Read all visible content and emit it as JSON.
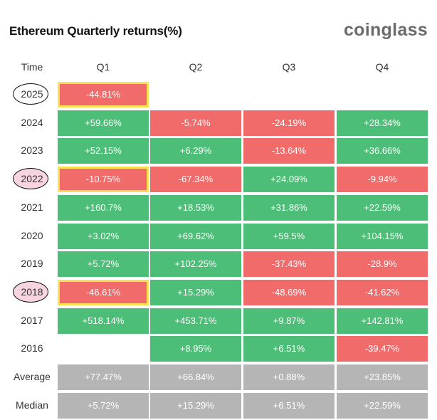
{
  "chart_data": {
    "type": "table",
    "title": "Ethereum Quarterly returns(%)",
    "brand": "coinglass",
    "columns": [
      "Time",
      "Q1",
      "Q2",
      "Q3",
      "Q4"
    ],
    "rows": [
      {
        "label": "2025",
        "values": [
          "-44.81%",
          null,
          null,
          null
        ]
      },
      {
        "label": "2024",
        "values": [
          "+59.66%",
          "-5.74%",
          "-24.19%",
          "+28.34%"
        ]
      },
      {
        "label": "2023",
        "values": [
          "+52.15%",
          "+6.29%",
          "-13.64%",
          "+36.66%"
        ]
      },
      {
        "label": "2022",
        "values": [
          "-10.75%",
          "-67.34%",
          "+24.09%",
          "-9.94%"
        ]
      },
      {
        "label": "2021",
        "values": [
          "+160.7%",
          "+18.53%",
          "+31.86%",
          "+22.59%"
        ]
      },
      {
        "label": "2020",
        "values": [
          "+3.02%",
          "+69.62%",
          "+59.5%",
          "+104.15%"
        ]
      },
      {
        "label": "2019",
        "values": [
          "+5.72%",
          "+102.25%",
          "-37.43%",
          "-28.9%"
        ]
      },
      {
        "label": "2018",
        "values": [
          "-46.61%",
          "+15.29%",
          "-48.69%",
          "-41.62%"
        ]
      },
      {
        "label": "2017",
        "values": [
          "+518.14%",
          "+453.71%",
          "+9.87%",
          "+142.81%"
        ]
      },
      {
        "label": "2016",
        "values": [
          null,
          "+8.95%",
          "+6.51%",
          "-39.47%"
        ]
      }
    ],
    "stats": [
      {
        "label": "Average",
        "values": [
          "+77.47%",
          "+66.84%",
          "+0.88%",
          "+23.85%"
        ]
      },
      {
        "label": "Median",
        "values": [
          "+5.72%",
          "+15.29%",
          "+6.51%",
          "+22.59%"
        ]
      }
    ],
    "annotations": {
      "circled_years": [
        "2025",
        "2022",
        "2018"
      ],
      "highlighted_q1_years": [
        "2025",
        "2022",
        "2018"
      ]
    },
    "colors": {
      "positive": "#4cbe77",
      "negative": "#f26b6b",
      "stat": "#b5b5b5",
      "highlight": "#fbe152"
    }
  }
}
